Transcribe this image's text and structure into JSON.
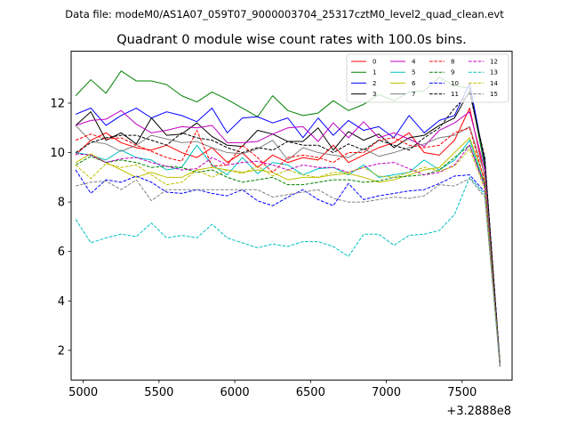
{
  "suptitle": "Data file: modeM0/AS1A07_059T07_9000003704_25317cztM0_level2_quad_clean.evt",
  "chart_data": {
    "type": "line",
    "title": "Quadrant 0 module wise count rates with 100.0s bins.",
    "xlabel": "",
    "ylabel": "",
    "x_offset_label": "+3.2888e8",
    "xlim": [
      4920,
      7830
    ],
    "ylim": [
      0.8,
      14.1
    ],
    "x_ticks": [
      5000,
      5500,
      6000,
      6500,
      7000,
      7500
    ],
    "y_ticks": [
      2,
      4,
      6,
      8,
      10,
      12
    ],
    "grid": false,
    "legend_position": "top-right",
    "legend_columns": 4,
    "x": [
      4950,
      5050,
      5150,
      5250,
      5350,
      5450,
      5550,
      5650,
      5750,
      5850,
      5950,
      6050,
      6150,
      6250,
      6350,
      6450,
      6550,
      6650,
      6750,
      6850,
      6950,
      7050,
      7150,
      7250,
      7350,
      7450,
      7550,
      7650,
      7750
    ],
    "series": [
      {
        "name": "0",
        "color": "#ff0000",
        "dash": "solid",
        "values": [
          9.9,
          10.5,
          10.8,
          10.4,
          10.2,
          10.1,
          10.3,
          10.0,
          9.8,
          10.2,
          9.6,
          10.0,
          9.4,
          9.9,
          9.6,
          9.8,
          9.7,
          10.3,
          9.6,
          9.9,
          10.2,
          10.4,
          10.8,
          10.0,
          9.9,
          10.5,
          11.8,
          9.0,
          1.35
        ]
      },
      {
        "name": "1",
        "color": "#008000",
        "dash": "solid",
        "values": [
          12.3,
          12.95,
          12.4,
          13.3,
          12.9,
          12.9,
          12.75,
          12.3,
          12.05,
          12.45,
          12.15,
          11.8,
          11.45,
          12.3,
          11.7,
          11.5,
          11.6,
          12.1,
          11.7,
          11.95,
          12.35,
          12.1,
          12.45,
          12.5,
          13.05,
          12.7,
          12.6,
          9.4,
          1.5
        ]
      },
      {
        "name": "2",
        "color": "#0000ff",
        "dash": "solid",
        "values": [
          11.55,
          11.8,
          11.1,
          11.5,
          11.8,
          11.4,
          11.65,
          11.5,
          11.25,
          11.8,
          10.8,
          11.4,
          11.45,
          11.2,
          11.4,
          10.6,
          11.4,
          10.7,
          11.3,
          10.9,
          11.05,
          10.6,
          11.5,
          10.8,
          11.3,
          11.5,
          12.8,
          9.6,
          1.5
        ]
      },
      {
        "name": "3",
        "color": "#000000",
        "dash": "solid",
        "values": [
          11.1,
          11.65,
          10.5,
          10.8,
          10.35,
          11.4,
          10.7,
          10.75,
          11.2,
          10.65,
          10.3,
          10.25,
          10.9,
          10.75,
          10.45,
          10.45,
          11.0,
          10.1,
          10.85,
          10.5,
          10.75,
          10.2,
          10.6,
          10.7,
          11.1,
          11.4,
          12.5,
          9.7,
          1.4
        ]
      },
      {
        "name": "4",
        "color": "#c000c0",
        "dash": "solid",
        "values": [
          11.1,
          11.3,
          11.35,
          11.7,
          11.15,
          10.8,
          10.9,
          11.05,
          11.0,
          11.1,
          10.4,
          10.4,
          10.45,
          10.75,
          11.0,
          11.05,
          10.45,
          11.2,
          10.6,
          11.25,
          10.6,
          10.8,
          10.55,
          10.25,
          10.9,
          11.2,
          11.65,
          9.3,
          1.45
        ]
      },
      {
        "name": "5",
        "color": "#00bfbf",
        "dash": "solid",
        "values": [
          10.0,
          9.9,
          9.7,
          10.1,
          9.8,
          9.7,
          9.3,
          9.4,
          10.3,
          9.5,
          9.1,
          9.8,
          9.15,
          9.6,
          9.5,
          9.1,
          9.35,
          9.4,
          9.1,
          9.5,
          9.0,
          9.1,
          9.2,
          9.7,
          9.3,
          9.7,
          10.5,
          8.7,
          1.35
        ]
      },
      {
        "name": "6",
        "color": "#bfbf00",
        "dash": "solid",
        "values": [
          9.6,
          9.95,
          9.6,
          9.3,
          9.0,
          9.2,
          9.0,
          9.0,
          9.3,
          9.4,
          9.3,
          9.2,
          9.3,
          9.2,
          8.9,
          9.0,
          9.0,
          9.1,
          9.15,
          9.0,
          8.8,
          8.9,
          9.1,
          9.3,
          9.4,
          10.0,
          10.6,
          8.9,
          1.4
        ]
      },
      {
        "name": "7",
        "color": "#808080",
        "dash": "solid",
        "values": [
          11.1,
          10.45,
          10.35,
          10.05,
          10.3,
          10.7,
          10.55,
          10.4,
          10.45,
          10.2,
          10.0,
          9.95,
          10.15,
          10.5,
          9.7,
          10.2,
          10.0,
          9.9,
          9.8,
          10.15,
          9.85,
          10.0,
          10.2,
          10.35,
          10.6,
          10.7,
          11.05,
          9.1,
          1.45
        ]
      },
      {
        "name": "8",
        "color": "#ff0000",
        "dash": "dashed",
        "values": [
          10.5,
          10.75,
          10.55,
          10.6,
          10.3,
          10.05,
          9.8,
          9.65,
          10.9,
          9.45,
          9.5,
          10.3,
          9.8,
          9.2,
          9.8,
          9.9,
          9.8,
          9.6,
          10.0,
          10.0,
          10.5,
          10.6,
          10.3,
          10.2,
          10.3,
          10.8,
          11.0,
          8.8,
          1.4
        ]
      },
      {
        "name": "9",
        "color": "#008000",
        "dash": "dashed",
        "values": [
          9.5,
          9.85,
          9.6,
          9.7,
          9.6,
          9.4,
          9.45,
          9.4,
          9.2,
          9.3,
          9.0,
          8.8,
          8.9,
          9.0,
          8.7,
          8.7,
          8.8,
          8.9,
          8.9,
          8.8,
          8.85,
          9.0,
          9.05,
          9.1,
          9.3,
          9.8,
          10.3,
          8.7,
          1.4
        ]
      },
      {
        "name": "10",
        "color": "#0000ff",
        "dash": "dashed",
        "values": [
          9.3,
          8.35,
          8.9,
          8.8,
          9.05,
          8.8,
          8.4,
          8.35,
          8.5,
          8.35,
          8.25,
          8.5,
          8.05,
          7.85,
          8.2,
          8.5,
          8.1,
          7.85,
          8.75,
          8.1,
          8.25,
          8.35,
          8.45,
          8.5,
          8.75,
          9.05,
          9.1,
          8.4,
          1.35
        ]
      },
      {
        "name": "11",
        "color": "#000000",
        "dash": "dashed",
        "values": [
          10.0,
          10.4,
          10.6,
          10.7,
          10.7,
          10.5,
          10.3,
          10.8,
          10.6,
          10.5,
          10.2,
          10.0,
          10.2,
          10.1,
          10.45,
          10.3,
          10.3,
          10.0,
          10.35,
          10.1,
          10.5,
          10.3,
          10.1,
          10.6,
          11.0,
          11.8,
          12.4,
          9.8,
          1.45
        ]
      },
      {
        "name": "12",
        "color": "#c000c0",
        "dash": "dashed",
        "values": [
          9.95,
          9.9,
          9.6,
          9.75,
          9.8,
          9.6,
          9.45,
          9.3,
          9.35,
          9.8,
          9.5,
          9.6,
          9.65,
          9.5,
          9.3,
          9.5,
          9.4,
          9.4,
          9.2,
          9.4,
          9.55,
          9.6,
          9.35,
          9.1,
          9.2,
          9.5,
          10.3,
          8.6,
          1.4
        ]
      },
      {
        "name": "13",
        "color": "#00bfbf",
        "dash": "dashed",
        "values": [
          7.3,
          6.35,
          6.55,
          6.7,
          6.6,
          7.15,
          6.55,
          6.65,
          6.55,
          7.1,
          6.55,
          6.35,
          6.15,
          6.3,
          6.2,
          6.4,
          6.4,
          6.2,
          5.8,
          6.7,
          6.7,
          6.25,
          6.65,
          6.7,
          6.85,
          7.5,
          9.0,
          8.3,
          1.35
        ]
      },
      {
        "name": "14",
        "color": "#bfbf00",
        "dash": "dashed",
        "values": [
          9.5,
          8.95,
          9.55,
          9.4,
          9.5,
          9.1,
          8.7,
          8.8,
          9.3,
          9.0,
          9.3,
          9.15,
          9.45,
          9.05,
          9.3,
          9.1,
          9.0,
          9.2,
          9.2,
          9.4,
          9.05,
          9.0,
          9.2,
          9.4,
          9.25,
          9.45,
          10.15,
          8.5,
          1.4
        ]
      },
      {
        "name": "15",
        "color": "#808080",
        "dash": "dashed",
        "values": [
          8.65,
          8.8,
          8.85,
          8.5,
          8.9,
          8.05,
          8.5,
          8.5,
          8.5,
          8.5,
          8.5,
          8.5,
          8.5,
          8.2,
          8.3,
          8.4,
          8.5,
          8.15,
          8.0,
          8.0,
          8.1,
          8.2,
          8.15,
          8.25,
          8.7,
          8.65,
          8.95,
          8.2,
          1.35
        ]
      }
    ]
  }
}
